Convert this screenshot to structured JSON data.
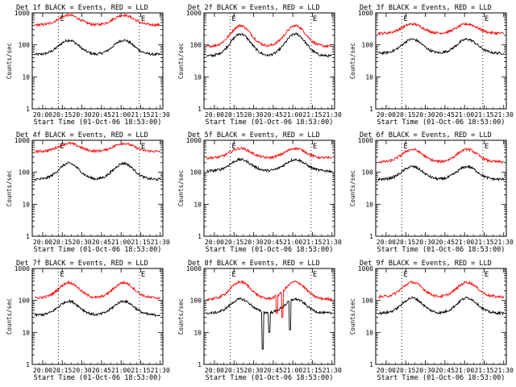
{
  "chart_data": [
    {
      "type": "line",
      "title": "Det 1f BLACK = Events, RED = LLD",
      "xlabel": "Start Time (01-Oct-06 18:53:00)",
      "ylabel": "Counts/sec",
      "x_ticks": [
        "20:00",
        "20:15",
        "20:30",
        "20:45",
        "21:00",
        "21:15",
        "21:30"
      ],
      "y_ticks": [
        "1",
        "10",
        "100",
        "1000"
      ],
      "yscale": "log",
      "ylim": [
        1,
        1000
      ],
      "xlim": [
        "19:52",
        "21:32"
      ],
      "markers": {
        "E1": "20:12",
        "E2": "21:14"
      },
      "series": [
        {
          "color": "#000000",
          "base": 50,
          "peak": 140
        },
        {
          "color": "#ff0000",
          "base": 420,
          "peak": 850
        }
      ]
    },
    {
      "type": "line",
      "title": "Det 2f BLACK = Events, RED = LLD",
      "xlabel": "Start Time (01-Oct-06 18:53:00)",
      "ylabel": "Counts/sec",
      "x_ticks": [
        "20:00",
        "20:15",
        "20:30",
        "20:45",
        "21:00",
        "21:15",
        "21:30"
      ],
      "y_ticks": [
        "1",
        "10",
        "100",
        "1000"
      ],
      "yscale": "log",
      "ylim": [
        1,
        1000
      ],
      "xlim": [
        "19:52",
        "21:32"
      ],
      "markers": {
        "E1": "20:12",
        "E2": "21:14"
      },
      "series": [
        {
          "color": "#000000",
          "base": 45,
          "peak": 220
        },
        {
          "color": "#ff0000",
          "base": 90,
          "peak": 400
        }
      ]
    },
    {
      "type": "line",
      "title": "Det 3f BLACK = Events, RED = LLD",
      "xlabel": "Start Time (01-Oct-06 18:53:00)",
      "ylabel": "Counts/sec",
      "x_ticks": [
        "20:00",
        "20:15",
        "20:30",
        "20:45",
        "21:00",
        "21:15",
        "21:30"
      ],
      "y_ticks": [
        "1",
        "10",
        "100",
        "1000"
      ],
      "yscale": "log",
      "ylim": [
        1,
        1000
      ],
      "xlim": [
        "19:52",
        "21:32"
      ],
      "markers": {
        "E1": "20:12",
        "E2": "21:14"
      },
      "series": [
        {
          "color": "#000000",
          "base": 55,
          "peak": 150
        },
        {
          "color": "#ff0000",
          "base": 230,
          "peak": 450
        }
      ]
    },
    {
      "type": "line",
      "title": "Det 4f BLACK = Events, RED = LLD",
      "xlabel": "Start Time (01-Oct-06 18:53:00)",
      "ylabel": "Counts/sec",
      "x_ticks": [
        "20:00",
        "20:15",
        "20:30",
        "20:45",
        "21:00",
        "21:15",
        "21:30"
      ],
      "y_ticks": [
        "1",
        "10",
        "100",
        "1000"
      ],
      "yscale": "log",
      "ylim": [
        1,
        1000
      ],
      "xlim": [
        "19:52",
        "21:32"
      ],
      "markers": {
        "E1": "20:12",
        "E2": "21:14"
      },
      "series": [
        {
          "color": "#000000",
          "base": 60,
          "peak": 190
        },
        {
          "color": "#ff0000",
          "base": 450,
          "peak": 800
        }
      ]
    },
    {
      "type": "line",
      "title": "Det 5f BLACK = Events, RED = LLD",
      "xlabel": "Start Time (01-Oct-06 18:53:00)",
      "ylabel": "Counts/sec",
      "x_ticks": [
        "20:00",
        "20:15",
        "20:30",
        "20:45",
        "21:00",
        "21:15",
        "21:30"
      ],
      "y_ticks": [
        "1",
        "10",
        "100",
        "1000"
      ],
      "yscale": "log",
      "ylim": [
        1,
        1000
      ],
      "xlim": [
        "19:52",
        "21:32"
      ],
      "markers": {
        "E1": "20:12",
        "E2": "21:14"
      },
      "series": [
        {
          "color": "#000000",
          "base": 110,
          "peak": 250
        },
        {
          "color": "#ff0000",
          "base": 280,
          "peak": 560
        }
      ]
    },
    {
      "type": "line",
      "title": "Det 6f BLACK = Events, RED = LLD",
      "xlabel": "Start Time (01-Oct-06 18:53:00)",
      "ylabel": "Counts/sec",
      "x_ticks": [
        "20:00",
        "20:15",
        "20:30",
        "20:45",
        "21:00",
        "21:15",
        "21:30"
      ],
      "y_ticks": [
        "1",
        "10",
        "100",
        "1000"
      ],
      "yscale": "log",
      "ylim": [
        1,
        1000
      ],
      "xlim": [
        "19:52",
        "21:32"
      ],
      "markers": {
        "E1": "20:12",
        "E2": "21:14"
      },
      "series": [
        {
          "color": "#000000",
          "base": 60,
          "peak": 150
        },
        {
          "color": "#ff0000",
          "base": 210,
          "peak": 520
        }
      ]
    },
    {
      "type": "line",
      "title": "Det 7f BLACK = Events, RED = LLD",
      "xlabel": "Start Time (01-Oct-06 18:53:00)",
      "ylabel": "Counts/sec",
      "x_ticks": [
        "20:00",
        "20:15",
        "20:30",
        "20:45",
        "21:00",
        "21:15",
        "21:30"
      ],
      "y_ticks": [
        "1",
        "10",
        "100",
        "1000"
      ],
      "yscale": "log",
      "ylim": [
        1,
        1000
      ],
      "xlim": [
        "19:52",
        "21:32"
      ],
      "markers": {
        "E1": "20:12",
        "E2": "21:14"
      },
      "series": [
        {
          "color": "#000000",
          "base": 35,
          "peak": 95
        },
        {
          "color": "#ff0000",
          "base": 120,
          "peak": 360
        }
      ]
    },
    {
      "type": "line",
      "title": "Det 8f BLACK = Events, RED = LLD",
      "xlabel": "Start Time (01-Oct-06 18:53:00)",
      "ylabel": "Counts/sec",
      "x_ticks": [
        "20:00",
        "20:15",
        "20:30",
        "20:45",
        "21:00",
        "21:15",
        "21:30"
      ],
      "y_ticks": [
        "1",
        "10",
        "100",
        "1000"
      ],
      "yscale": "log",
      "ylim": [
        1,
        1000
      ],
      "xlim": [
        "19:52",
        "21:32"
      ],
      "markers": {
        "E1": "20:12",
        "E2": "21:14"
      },
      "series": [
        {
          "color": "#000000",
          "base": 40,
          "peak": 110,
          "dips": [
            {
              "t": "20:37",
              "v": 3
            },
            {
              "t": "20:42",
              "v": 10
            },
            {
              "t": "20:58",
              "v": 12
            }
          ]
        },
        {
          "color": "#ff0000",
          "base": 110,
          "peak": 380,
          "dips": [
            {
              "t": "20:48",
              "v": 40
            },
            {
              "t": "20:52",
              "v": 30
            }
          ]
        }
      ]
    },
    {
      "type": "line",
      "title": "Det 9f BLACK = Events, RED = LLD",
      "xlabel": "Start Time (01-Oct-06 18:53:00)",
      "ylabel": "Counts/sec",
      "x_ticks": [
        "20:00",
        "20:15",
        "20:30",
        "20:45",
        "21:00",
        "21:15",
        "21:30"
      ],
      "y_ticks": [
        "1",
        "10",
        "100",
        "1000"
      ],
      "yscale": "log",
      "ylim": [
        1,
        1000
      ],
      "xlim": [
        "19:52",
        "21:32"
      ],
      "markers": {
        "E1": "20:12",
        "E2": "21:14"
      },
      "series": [
        {
          "color": "#000000",
          "base": 40,
          "peak": 120
        },
        {
          "color": "#ff0000",
          "base": 130,
          "peak": 370
        }
      ]
    }
  ]
}
